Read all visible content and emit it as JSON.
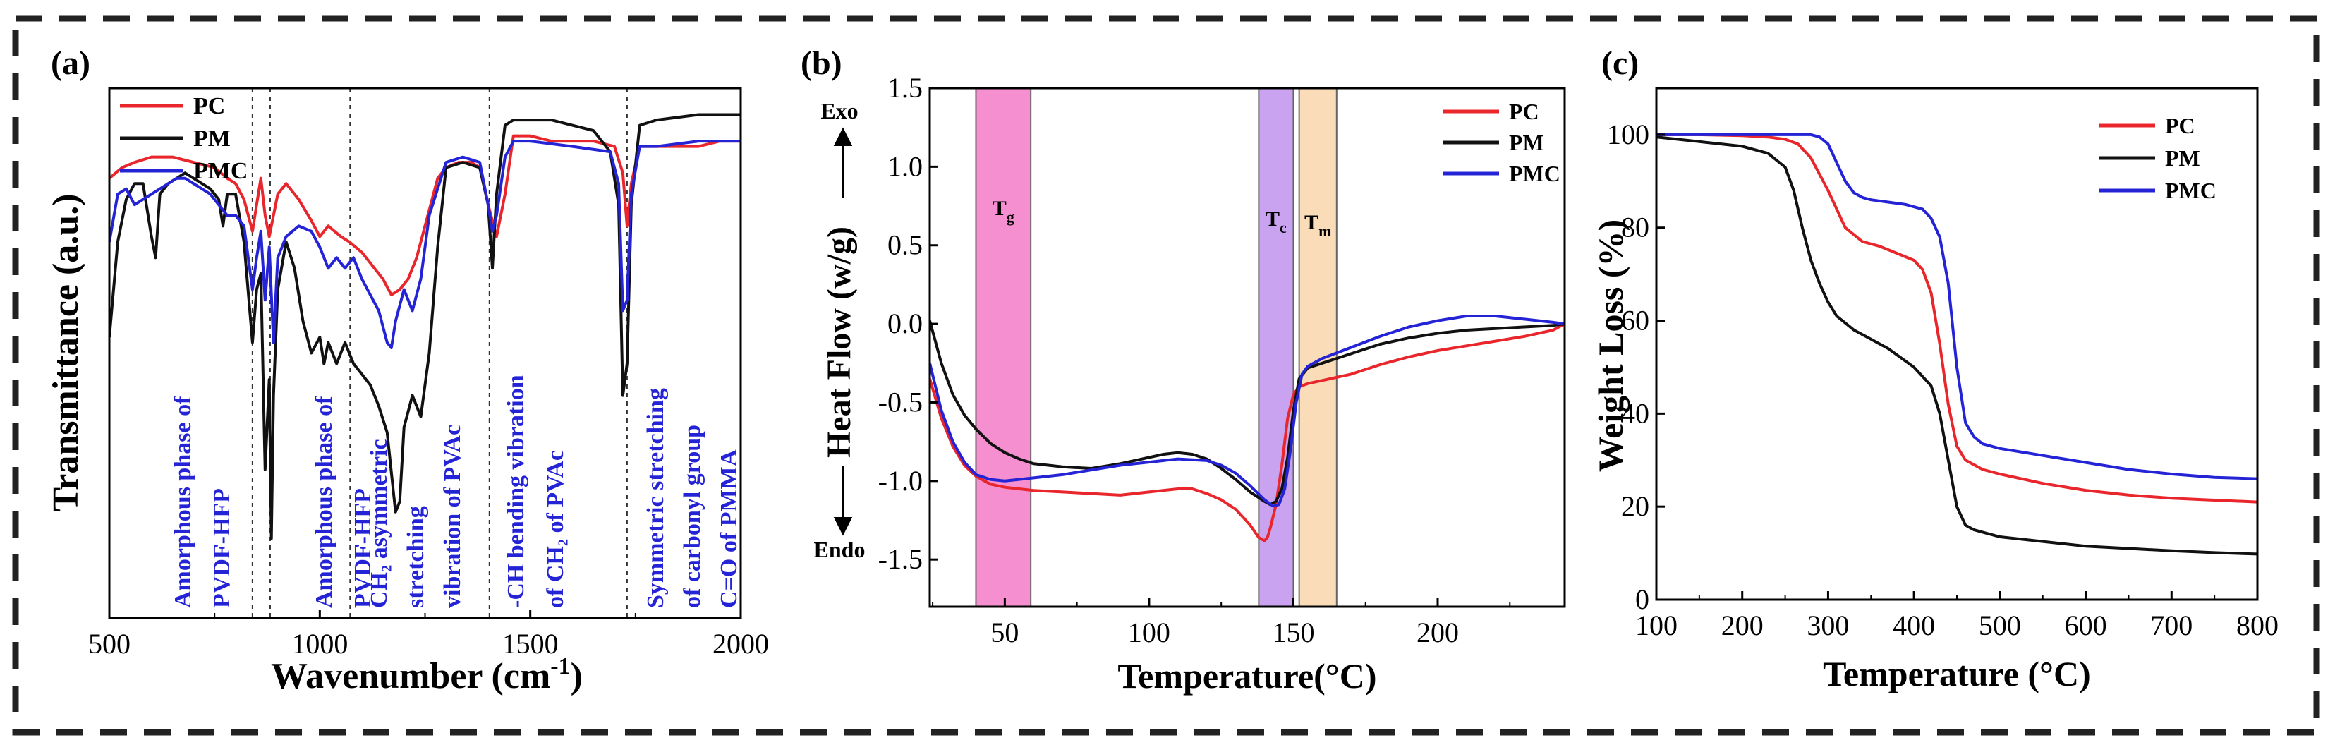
{
  "colors": {
    "PC": "#e8262b",
    "PM": "#111111",
    "PMC": "#2424d6",
    "tg_band": "#f58fcf",
    "tc_band": "#c9a2f0",
    "tm_band": "#fbdcb8",
    "annotation_text": "#2424d6",
    "border": "#222222"
  },
  "chart_data": [
    {
      "panel": "(a)",
      "type": "line",
      "title": "",
      "xlabel": "Wavenumber (cm",
      "xlabel_sup": "-1",
      "xlabel_end": ")",
      "ylabel": "Transmittance (a.u.)",
      "xlim": [
        500,
        2000
      ],
      "ylim": [
        0,
        100
      ],
      "y_ticks_shown": false,
      "x_ticks": [
        500,
        1000,
        1500,
        2000
      ],
      "legend": [
        "PC",
        "PM",
        "PMC"
      ],
      "legend_position": "top-left",
      "series": [
        {
          "name": "PC",
          "x": [
            500,
            530,
            560,
            600,
            650,
            700,
            750,
            780,
            800,
            820,
            840,
            850,
            860,
            870,
            880,
            900,
            920,
            950,
            980,
            1000,
            1020,
            1050,
            1070,
            1100,
            1120,
            1150,
            1170,
            1190,
            1210,
            1230,
            1250,
            1280,
            1300,
            1330,
            1360,
            1380,
            1400,
            1420,
            1440,
            1460,
            1500,
            1550,
            1600,
            1650,
            1700,
            1720,
            1730,
            1740,
            1760,
            1800,
            1850,
            1900,
            1950,
            2000
          ],
          "y": [
            83,
            85,
            86,
            87,
            87,
            86,
            85,
            83,
            82,
            79,
            73,
            78,
            83,
            76,
            72,
            80,
            82,
            79,
            75,
            72,
            74,
            72,
            71,
            69,
            67,
            64,
            61,
            62,
            64,
            68,
            74,
            83,
            85,
            86,
            86,
            85,
            78,
            72,
            80,
            91,
            91,
            90,
            90,
            90,
            89,
            84,
            74,
            82,
            89,
            89,
            89,
            89,
            90,
            90
          ]
        },
        {
          "name": "PM",
          "x": [
            500,
            520,
            540,
            560,
            580,
            600,
            610,
            620,
            640,
            660,
            680,
            700,
            720,
            740,
            760,
            770,
            780,
            800,
            820,
            840,
            850,
            860,
            870,
            880,
            885,
            890,
            900,
            920,
            940,
            960,
            980,
            1000,
            1010,
            1020,
            1040,
            1060,
            1080,
            1100,
            1120,
            1140,
            1160,
            1180,
            1190,
            1200,
            1220,
            1240,
            1260,
            1280,
            1300,
            1340,
            1380,
            1400,
            1410,
            1420,
            1440,
            1460,
            1480,
            1500,
            1550,
            1600,
            1650,
            1690,
            1710,
            1720,
            1730,
            1740,
            1760,
            1800,
            1900,
            2000
          ],
          "y": [
            53,
            71,
            79,
            82,
            82,
            72,
            68,
            80,
            82,
            83,
            84,
            83,
            82,
            81,
            79,
            74,
            80,
            80,
            71,
            52,
            62,
            65,
            28,
            45,
            15,
            42,
            62,
            71,
            66,
            56,
            50,
            53,
            48,
            52,
            48,
            52,
            48,
            46,
            44,
            40,
            35,
            20,
            22,
            36,
            42,
            38,
            50,
            70,
            85,
            86,
            85,
            78,
            66,
            80,
            93,
            94,
            94,
            94,
            94,
            93,
            92,
            88,
            78,
            42,
            48,
            78,
            93,
            94,
            95,
            95
          ]
        },
        {
          "name": "PMC",
          "x": [
            500,
            520,
            540,
            560,
            580,
            600,
            620,
            640,
            660,
            680,
            700,
            720,
            740,
            760,
            780,
            800,
            820,
            840,
            850,
            860,
            870,
            880,
            890,
            900,
            920,
            950,
            980,
            1000,
            1020,
            1040,
            1060,
            1080,
            1100,
            1120,
            1140,
            1160,
            1170,
            1180,
            1200,
            1220,
            1240,
            1260,
            1300,
            1340,
            1380,
            1400,
            1410,
            1420,
            1440,
            1460,
            1500,
            1600,
            1690,
            1710,
            1720,
            1730,
            1740,
            1760,
            1800,
            1900,
            2000
          ],
          "y": [
            71,
            80,
            81,
            78,
            79,
            80,
            81,
            82,
            83,
            83,
            82,
            81,
            80,
            78,
            76,
            76,
            74,
            62,
            68,
            73,
            60,
            70,
            52,
            68,
            72,
            74,
            73,
            70,
            66,
            68,
            66,
            68,
            64,
            61,
            58,
            52,
            51,
            56,
            62,
            58,
            64,
            76,
            86,
            87,
            86,
            78,
            73,
            76,
            87,
            90,
            90,
            89,
            88,
            82,
            58,
            60,
            80,
            89,
            89,
            90,
            90
          ]
        }
      ],
      "reference_lines_x": [
        840,
        882,
        1072,
        1403,
        1730
      ],
      "annotations": [
        {
          "lines": [
            "Amorphous phase of",
            "PVDF-HFP"
          ]
        },
        {
          "lines": [
            "Amorphous phase of",
            "PVDF-HFP"
          ]
        },
        {
          "lines": [
            "CH₂ asymmetric",
            "stretching",
            "vibration of PVAc"
          ]
        },
        {
          "lines": [
            "-CH bending vibration",
            "of CH₂ of PVAc"
          ]
        },
        {
          "lines": [
            "Symmetric stretching",
            "of carbonyl  group",
            "C=O of PMMA"
          ]
        }
      ]
    },
    {
      "panel": "(b)",
      "type": "line",
      "title": "",
      "xlabel": "Temperature(°C)",
      "ylabel": "Heat Flow (w/g)",
      "ylabel_top": "Exo",
      "ylabel_bottom": "Endo",
      "xlim": [
        24,
        244
      ],
      "ylim": [
        -1.8,
        1.5
      ],
      "x_ticks": [
        50,
        100,
        150,
        200
      ],
      "y_ticks": [
        -1.5,
        -1.0,
        -0.5,
        0.0,
        0.5,
        1.0,
        1.5
      ],
      "y_tick_labels": [
        "-1.5",
        "-1.0",
        "-0.5",
        "0.0",
        "0.5",
        "1.0",
        "1.5"
      ],
      "legend": [
        "PC",
        "PM",
        "PMC"
      ],
      "legend_position": "top-right",
      "bands": [
        {
          "label": "T",
          "sub": "g",
          "x_range": [
            40,
            59
          ],
          "color_key": "tg_band"
        },
        {
          "label": "T",
          "sub": "c",
          "x_range": [
            138,
            150
          ],
          "color_key": "tc_band"
        },
        {
          "label": "T",
          "sub": "m",
          "x_range": [
            152,
            165
          ],
          "color_key": "tm_band"
        }
      ],
      "series": [
        {
          "name": "PC",
          "x": [
            24,
            28,
            32,
            36,
            40,
            45,
            50,
            55,
            60,
            70,
            80,
            90,
            100,
            110,
            115,
            120,
            125,
            130,
            135,
            138,
            140,
            141,
            142,
            144,
            146,
            148,
            150,
            152,
            155,
            160,
            170,
            180,
            190,
            200,
            210,
            220,
            230,
            240,
            244
          ],
          "y": [
            -0.35,
            -0.6,
            -0.78,
            -0.9,
            -0.97,
            -1.02,
            -1.04,
            -1.05,
            -1.06,
            -1.07,
            -1.08,
            -1.09,
            -1.07,
            -1.05,
            -1.05,
            -1.08,
            -1.12,
            -1.18,
            -1.28,
            -1.36,
            -1.38,
            -1.36,
            -1.3,
            -1.15,
            -0.9,
            -0.6,
            -0.45,
            -0.4,
            -0.38,
            -0.36,
            -0.32,
            -0.26,
            -0.21,
            -0.17,
            -0.14,
            -0.11,
            -0.08,
            -0.04,
            0.0
          ]
        },
        {
          "name": "PM",
          "x": [
            24,
            28,
            32,
            36,
            40,
            45,
            50,
            55,
            60,
            70,
            80,
            90,
            100,
            105,
            110,
            115,
            120,
            125,
            130,
            135,
            140,
            142,
            144,
            146,
            148,
            150,
            152,
            155,
            160,
            170,
            180,
            190,
            200,
            210,
            220,
            230,
            240,
            244
          ],
          "y": [
            0.02,
            -0.25,
            -0.45,
            -0.58,
            -0.67,
            -0.76,
            -0.82,
            -0.86,
            -0.89,
            -0.91,
            -0.92,
            -0.89,
            -0.85,
            -0.83,
            -0.82,
            -0.83,
            -0.86,
            -0.92,
            -0.99,
            -1.07,
            -1.13,
            -1.15,
            -1.13,
            -1.05,
            -0.85,
            -0.55,
            -0.35,
            -0.28,
            -0.25,
            -0.19,
            -0.13,
            -0.09,
            -0.06,
            -0.04,
            -0.03,
            -0.02,
            -0.01,
            0.0
          ]
        },
        {
          "name": "PMC",
          "x": [
            24,
            28,
            32,
            36,
            40,
            45,
            50,
            55,
            60,
            70,
            80,
            90,
            100,
            110,
            120,
            125,
            130,
            135,
            140,
            143,
            145,
            147,
            149,
            151,
            153,
            155,
            160,
            170,
            180,
            190,
            200,
            210,
            220,
            230,
            240,
            244
          ],
          "y": [
            -0.25,
            -0.55,
            -0.75,
            -0.88,
            -0.96,
            -0.99,
            -1.0,
            -0.99,
            -0.98,
            -0.96,
            -0.93,
            -0.9,
            -0.88,
            -0.86,
            -0.87,
            -0.9,
            -0.95,
            -1.03,
            -1.12,
            -1.16,
            -1.15,
            -1.05,
            -0.8,
            -0.5,
            -0.32,
            -0.27,
            -0.22,
            -0.15,
            -0.08,
            -0.02,
            0.02,
            0.05,
            0.05,
            0.03,
            0.01,
            0.0
          ]
        }
      ]
    },
    {
      "panel": "(c)",
      "type": "line",
      "title": "",
      "xlabel": "Temperature (°C)",
      "ylabel": "Weight Loss (%)",
      "xlim": [
        100,
        800
      ],
      "ylim": [
        0,
        110
      ],
      "x_ticks": [
        100,
        200,
        300,
        400,
        500,
        600,
        700,
        800
      ],
      "y_ticks": [
        0,
        20,
        40,
        60,
        80,
        100
      ],
      "legend": [
        "PC",
        "PM",
        "PMC"
      ],
      "legend_position": "top-right",
      "series": [
        {
          "name": "PC",
          "x": [
            100,
            150,
            200,
            230,
            250,
            265,
            280,
            300,
            320,
            340,
            360,
            380,
            400,
            410,
            420,
            430,
            440,
            450,
            460,
            480,
            500,
            550,
            600,
            650,
            700,
            750,
            800
          ],
          "y": [
            100,
            100,
            99.8,
            99.5,
            99,
            98,
            95,
            88,
            80,
            77,
            76,
            74.5,
            73,
            71,
            66,
            55,
            42,
            33,
            30,
            28,
            27,
            25,
            23.5,
            22.5,
            21.8,
            21.4,
            21
          ]
        },
        {
          "name": "PM",
          "x": [
            100,
            150,
            200,
            230,
            250,
            260,
            270,
            280,
            290,
            300,
            310,
            320,
            330,
            350,
            370,
            400,
            420,
            430,
            440,
            450,
            460,
            470,
            480,
            500,
            550,
            600,
            650,
            700,
            750,
            800
          ],
          "y": [
            99.5,
            98.5,
            97.5,
            96,
            93,
            88,
            80,
            73,
            68,
            64,
            61,
            59.5,
            58,
            56,
            54,
            50,
            46,
            40,
            30,
            20,
            16,
            15,
            14.5,
            13.5,
            12.5,
            11.5,
            11,
            10.5,
            10.1,
            9.8
          ]
        },
        {
          "name": "PMC",
          "x": [
            100,
            150,
            200,
            250,
            280,
            290,
            300,
            310,
            320,
            330,
            340,
            350,
            370,
            390,
            410,
            420,
            430,
            440,
            450,
            460,
            470,
            480,
            500,
            550,
            600,
            650,
            700,
            750,
            800
          ],
          "y": [
            100,
            100,
            100,
            100,
            100,
            99.5,
            98,
            94,
            90,
            87.5,
            86.5,
            86,
            85.5,
            85,
            84,
            82,
            78,
            68,
            50,
            38,
            35,
            33.5,
            32.5,
            31,
            29.5,
            28,
            27,
            26.3,
            26
          ]
        }
      ]
    }
  ]
}
